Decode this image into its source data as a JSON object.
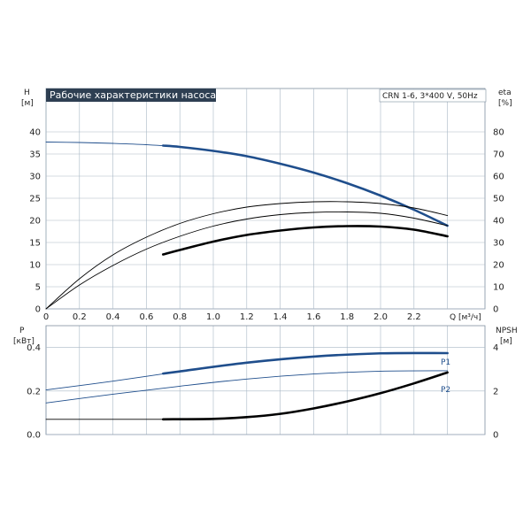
{
  "title": "Рабочие характеристики насоса",
  "model": "CRN 1-6, 3*400 V, 50Hz",
  "colors": {
    "blue": "#1f4e8c",
    "black": "#000000",
    "grid": "#a9b8c6",
    "title_bg": "#2e3f52"
  },
  "chart_data": [
    {
      "type": "line",
      "title": "Рабочие характеристики насоса",
      "xlabel": "Q [м³/ч]",
      "x_ticks": [
        "0",
        "0.2",
        "0.4",
        "0.6",
        "0.8",
        "1.0",
        "1.2",
        "1.4",
        "1.6",
        "1.8",
        "2.0",
        "2.2"
      ],
      "xlim": [
        0,
        2.6
      ],
      "ylabel_left": [
        "H",
        "[м]"
      ],
      "y_ticks_left": [
        "0",
        "5",
        "10",
        "15",
        "20",
        "25",
        "30",
        "35",
        "40"
      ],
      "ylim_left": [
        0,
        45
      ],
      "ylabel_right": [
        "eta",
        "[%]"
      ],
      "y_ticks_right": [
        "0",
        "10",
        "20",
        "30",
        "40",
        "50",
        "60",
        "70",
        "80"
      ],
      "ylim_right": [
        0,
        90
      ],
      "grid": true,
      "series": [
        {
          "axis": "left",
          "color": "#1f4e8c",
          "style": "thin",
          "x": [
            0,
            0.2,
            0.4,
            0.6,
            0.8,
            1.0,
            1.2,
            1.4,
            1.6,
            1.8,
            2.0,
            2.2,
            2.4
          ],
          "y": [
            37.7,
            37.6,
            37.4,
            37.1,
            36.6,
            35.7,
            34.5,
            32.8,
            30.8,
            28.4,
            25.6,
            22.4,
            18.8
          ]
        },
        {
          "axis": "left",
          "color": "#1f4e8c",
          "style": "thick",
          "x": [
            0.7,
            0.8,
            1.0,
            1.2,
            1.4,
            1.6,
            1.8,
            2.0,
            2.2,
            2.4
          ],
          "y": [
            36.9,
            36.6,
            35.7,
            34.5,
            32.8,
            30.8,
            28.4,
            25.6,
            22.4,
            18.8
          ]
        },
        {
          "axis": "left",
          "color": "#000000",
          "style": "thin",
          "x": [
            0,
            0.2,
            0.4,
            0.6,
            0.8,
            1.0,
            1.2,
            1.4,
            1.6,
            1.8,
            2.0,
            2.2,
            2.4
          ],
          "y": [
            0,
            5.4,
            9.8,
            13.5,
            16.4,
            18.7,
            20.3,
            21.3,
            21.8,
            21.9,
            21.6,
            20.5,
            18.8
          ]
        },
        {
          "axis": "left",
          "color": "#000000",
          "style": "thin",
          "x": [
            0,
            0.2,
            0.4,
            0.6,
            0.8,
            1.0,
            1.2,
            1.4,
            1.6,
            1.8,
            2.0,
            2.2,
            2.4
          ],
          "y": [
            0,
            6.8,
            12.2,
            16.2,
            19.3,
            21.5,
            23.0,
            23.8,
            24.2,
            24.2,
            23.8,
            22.8,
            21.1
          ]
        },
        {
          "axis": "left",
          "color": "#000000",
          "style": "thick",
          "x": [
            0.7,
            0.8,
            1.0,
            1.2,
            1.4,
            1.6,
            1.8,
            2.0,
            2.2,
            2.4
          ],
          "y": [
            12.3,
            13.3,
            15.2,
            16.7,
            17.7,
            18.4,
            18.7,
            18.6,
            17.9,
            16.4
          ]
        }
      ]
    },
    {
      "type": "line",
      "xlim": [
        0,
        2.6
      ],
      "ylabel_left": [
        "P",
        "[кВт]"
      ],
      "y_ticks_left": [
        "0.0",
        "0.2",
        "0.4"
      ],
      "ylim_left": [
        0,
        0.5
      ],
      "ylabel_right": [
        "NPSH",
        "[м]"
      ],
      "y_ticks_right": [
        "0",
        "2",
        "4"
      ],
      "ylim_right": [
        0,
        5
      ],
      "grid": true,
      "series": [
        {
          "name": "P1",
          "axis": "left",
          "color": "#1f4e8c",
          "style": "thin",
          "x": [
            0,
            0.4,
            0.8,
            1.2,
            1.6,
            2.0,
            2.4
          ],
          "y": [
            0.205,
            0.245,
            0.29,
            0.33,
            0.358,
            0.373,
            0.374
          ]
        },
        {
          "name": "P1",
          "axis": "left",
          "color": "#1f4e8c",
          "style": "thick",
          "x": [
            0.7,
            0.8,
            1.2,
            1.6,
            2.0,
            2.4
          ],
          "y": [
            0.28,
            0.29,
            0.33,
            0.358,
            0.373,
            0.374
          ]
        },
        {
          "name": "P2",
          "axis": "left",
          "color": "#1f4e8c",
          "style": "thin",
          "x": [
            0,
            0.4,
            0.8,
            1.2,
            1.6,
            2.0,
            2.4
          ],
          "y": [
            0.145,
            0.185,
            0.222,
            0.255,
            0.278,
            0.291,
            0.293
          ]
        },
        {
          "axis": "right",
          "color": "#000000",
          "style": "thin",
          "x": [
            0,
            0.35,
            0.7
          ],
          "y": [
            0.7,
            0.7,
            0.7
          ]
        },
        {
          "axis": "right",
          "color": "#000000",
          "style": "thick",
          "x": [
            0.7,
            1.0,
            1.2,
            1.4,
            1.6,
            1.8,
            2.0,
            2.2,
            2.4
          ],
          "y": [
            0.7,
            0.72,
            0.8,
            0.95,
            1.2,
            1.52,
            1.9,
            2.35,
            2.85
          ]
        }
      ]
    }
  ]
}
